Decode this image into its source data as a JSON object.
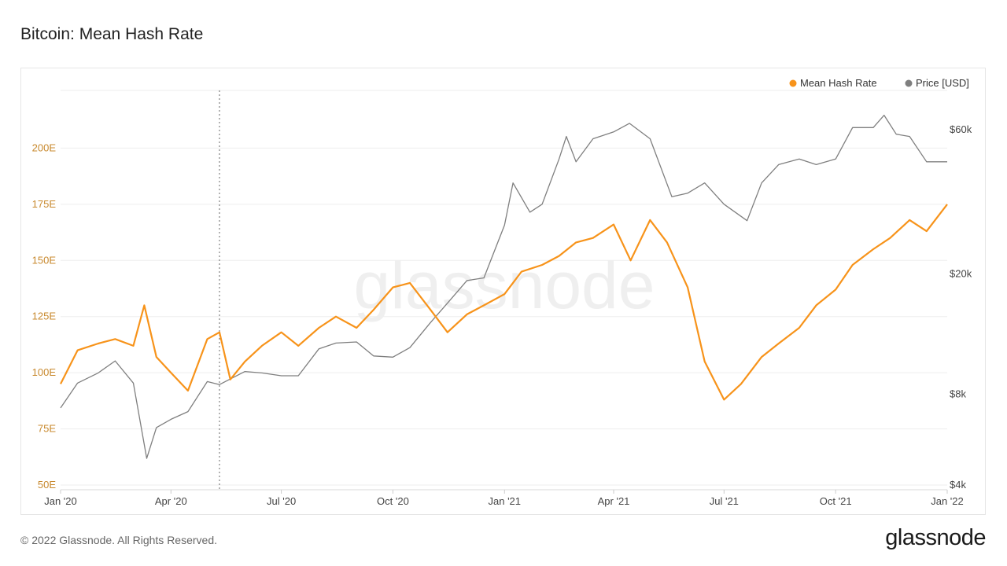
{
  "title": "Bitcoin: Mean Hash Rate",
  "footer": "© 2022 Glassnode. All Rights Reserved.",
  "brand": "glassnode",
  "watermark": "glassnode",
  "colors": {
    "hash": "#f7931a",
    "price": "#7f7f7f"
  },
  "chart_data": {
    "type": "line",
    "x_ticks": [
      "Jan '20",
      "Apr '20",
      "Jul '20",
      "Oct '20",
      "Jan '21",
      "Apr '21",
      "Jul '21",
      "Oct '21",
      "Jan '22"
    ],
    "y_left_ticks": [
      "50E",
      "75E",
      "100E",
      "125E",
      "150E",
      "175E",
      "200E"
    ],
    "y_left_range": [
      50,
      225
    ],
    "y_right_ticks": [
      "$4k",
      "$8k",
      "$20k",
      "$60k"
    ],
    "y_right_scale": "log",
    "y_right_range": [
      4000,
      80000
    ],
    "x_range": [
      "2020-01-01",
      "2022-01-01"
    ],
    "annotation_date": "2020-05-11",
    "grid": "horizontal",
    "legend_position": "top-right",
    "series": [
      {
        "name": "Mean Hash Rate",
        "axis": "left",
        "color": "#f7931a",
        "points": [
          [
            "2020-01-01",
            95
          ],
          [
            "2020-01-15",
            110
          ],
          [
            "2020-02-01",
            113
          ],
          [
            "2020-02-15",
            115
          ],
          [
            "2020-03-01",
            112
          ],
          [
            "2020-03-10",
            130
          ],
          [
            "2020-03-20",
            107
          ],
          [
            "2020-04-01",
            100
          ],
          [
            "2020-04-15",
            92
          ],
          [
            "2020-05-01",
            115
          ],
          [
            "2020-05-11",
            118
          ],
          [
            "2020-05-20",
            97
          ],
          [
            "2020-06-01",
            105
          ],
          [
            "2020-06-15",
            112
          ],
          [
            "2020-07-01",
            118
          ],
          [
            "2020-07-15",
            112
          ],
          [
            "2020-08-01",
            120
          ],
          [
            "2020-08-15",
            125
          ],
          [
            "2020-09-01",
            120
          ],
          [
            "2020-09-15",
            128
          ],
          [
            "2020-10-01",
            138
          ],
          [
            "2020-10-15",
            140
          ],
          [
            "2020-11-01",
            128
          ],
          [
            "2020-11-15",
            118
          ],
          [
            "2020-12-01",
            126
          ],
          [
            "2020-12-15",
            130
          ],
          [
            "2021-01-01",
            135
          ],
          [
            "2021-01-15",
            145
          ],
          [
            "2021-02-01",
            148
          ],
          [
            "2021-02-15",
            152
          ],
          [
            "2021-03-01",
            158
          ],
          [
            "2021-03-15",
            160
          ],
          [
            "2021-04-01",
            166
          ],
          [
            "2021-04-15",
            150
          ],
          [
            "2021-05-01",
            168
          ],
          [
            "2021-05-15",
            158
          ],
          [
            "2021-06-01",
            138
          ],
          [
            "2021-06-15",
            105
          ],
          [
            "2021-07-01",
            88
          ],
          [
            "2021-07-15",
            95
          ],
          [
            "2021-08-01",
            107
          ],
          [
            "2021-08-15",
            113
          ],
          [
            "2021-09-01",
            120
          ],
          [
            "2021-09-15",
            130
          ],
          [
            "2021-10-01",
            137
          ],
          [
            "2021-10-15",
            148
          ],
          [
            "2021-11-01",
            155
          ],
          [
            "2021-11-15",
            160
          ],
          [
            "2021-12-01",
            168
          ],
          [
            "2021-12-15",
            163
          ],
          [
            "2022-01-01",
            175
          ]
        ]
      },
      {
        "name": "Price [USD]",
        "axis": "right",
        "color": "#7f7f7f",
        "points": [
          [
            "2020-01-01",
            7200
          ],
          [
            "2020-01-15",
            8700
          ],
          [
            "2020-02-01",
            9400
          ],
          [
            "2020-02-15",
            10300
          ],
          [
            "2020-03-01",
            8700
          ],
          [
            "2020-03-12",
            4900
          ],
          [
            "2020-03-20",
            6200
          ],
          [
            "2020-04-01",
            6600
          ],
          [
            "2020-04-15",
            7000
          ],
          [
            "2020-05-01",
            8800
          ],
          [
            "2020-05-11",
            8600
          ],
          [
            "2020-06-01",
            9500
          ],
          [
            "2020-06-15",
            9400
          ],
          [
            "2020-07-01",
            9200
          ],
          [
            "2020-07-15",
            9200
          ],
          [
            "2020-08-01",
            11300
          ],
          [
            "2020-08-15",
            11800
          ],
          [
            "2020-09-01",
            11900
          ],
          [
            "2020-09-15",
            10700
          ],
          [
            "2020-10-01",
            10600
          ],
          [
            "2020-10-15",
            11400
          ],
          [
            "2020-11-01",
            13800
          ],
          [
            "2020-11-15",
            16000
          ],
          [
            "2020-12-01",
            19000
          ],
          [
            "2020-12-15",
            19400
          ],
          [
            "2021-01-01",
            29000
          ],
          [
            "2021-01-08",
            40000
          ],
          [
            "2021-01-22",
            32000
          ],
          [
            "2021-02-01",
            34000
          ],
          [
            "2021-02-15",
            48000
          ],
          [
            "2021-02-21",
            57000
          ],
          [
            "2021-03-01",
            47000
          ],
          [
            "2021-03-15",
            56000
          ],
          [
            "2021-04-01",
            59000
          ],
          [
            "2021-04-14",
            63000
          ],
          [
            "2021-05-01",
            56000
          ],
          [
            "2021-05-19",
            36000
          ],
          [
            "2021-06-01",
            37000
          ],
          [
            "2021-06-15",
            40000
          ],
          [
            "2021-07-01",
            34000
          ],
          [
            "2021-07-20",
            30000
          ],
          [
            "2021-08-01",
            40000
          ],
          [
            "2021-08-15",
            46000
          ],
          [
            "2021-09-01",
            48000
          ],
          [
            "2021-09-15",
            46000
          ],
          [
            "2021-10-01",
            48000
          ],
          [
            "2021-10-15",
            61000
          ],
          [
            "2021-11-01",
            61000
          ],
          [
            "2021-11-10",
            67000
          ],
          [
            "2021-11-20",
            58000
          ],
          [
            "2021-12-01",
            57000
          ],
          [
            "2021-12-15",
            47000
          ],
          [
            "2022-01-01",
            47000
          ]
        ]
      }
    ]
  }
}
